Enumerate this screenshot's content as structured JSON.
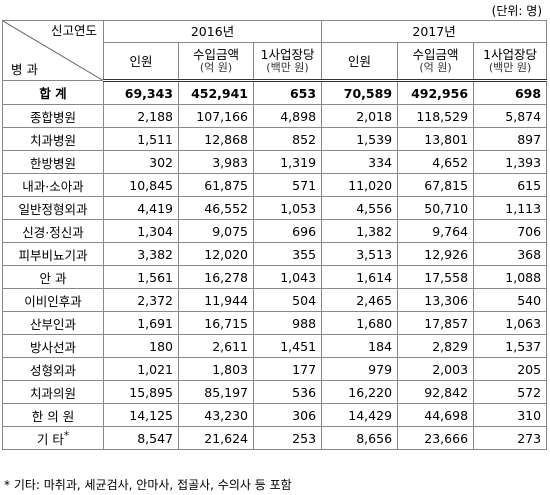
{
  "unit": "(단위: 명)",
  "header": {
    "corner_top": "신고연도",
    "corner_bottom": "병 과",
    "years": [
      "2016년",
      "2017년"
    ],
    "columns": [
      {
        "label": "인원"
      },
      {
        "label": "수입금액",
        "sub": "(억 원)"
      },
      {
        "label": "1사업장당",
        "sub": "(백만 원)"
      }
    ]
  },
  "table": {
    "note_mark": "*",
    "rows": [
      [
        "합 계",
        "69,343",
        "452,941",
        "653",
        "70,589",
        "492,956",
        "698"
      ],
      [
        "종합병원",
        "2,188",
        "107,166",
        "4,898",
        "2,018",
        "118,529",
        "5,874"
      ],
      [
        "치과병원",
        "1,511",
        "12,868",
        "852",
        "1,539",
        "13,801",
        "897"
      ],
      [
        "한방병원",
        "302",
        "3,983",
        "1,319",
        "334",
        "4,652",
        "1,393"
      ],
      [
        "내과·소아과",
        "10,845",
        "61,875",
        "571",
        "11,020",
        "67,815",
        "615"
      ],
      [
        "일반정형외과",
        "4,419",
        "46,552",
        "1,053",
        "4,556",
        "50,710",
        "1,113"
      ],
      [
        "신경·정신과",
        "1,304",
        "9,075",
        "696",
        "1,382",
        "9,764",
        "706"
      ],
      [
        "피부비뇨기과",
        "3,382",
        "12,020",
        "355",
        "3,513",
        "12,926",
        "368"
      ],
      [
        "안 과",
        "1,561",
        "16,278",
        "1,043",
        "1,614",
        "17,558",
        "1,088"
      ],
      [
        "이비인후과",
        "2,372",
        "11,944",
        "504",
        "2,465",
        "13,306",
        "540"
      ],
      [
        "산부인과",
        "1,691",
        "16,715",
        "988",
        "1,680",
        "17,857",
        "1,063"
      ],
      [
        "방사선과",
        "180",
        "2,611",
        "1,451",
        "184",
        "2,829",
        "1,537"
      ],
      [
        "성형외과",
        "1,021",
        "1,803",
        "177",
        "979",
        "2,003",
        "205"
      ],
      [
        "치과의원",
        "15,895",
        "85,197",
        "536",
        "16,220",
        "92,842",
        "572"
      ],
      [
        "한 의 원",
        "14,125",
        "43,230",
        "306",
        "14,429",
        "44,698",
        "310"
      ],
      [
        "기 타",
        "8,547",
        "21,624",
        "253",
        "8,656",
        "23,666",
        "273"
      ]
    ]
  },
  "footnote": "* 기타: 마취과, 세균검사, 안마사, 접골사, 수의사 등 포함"
}
